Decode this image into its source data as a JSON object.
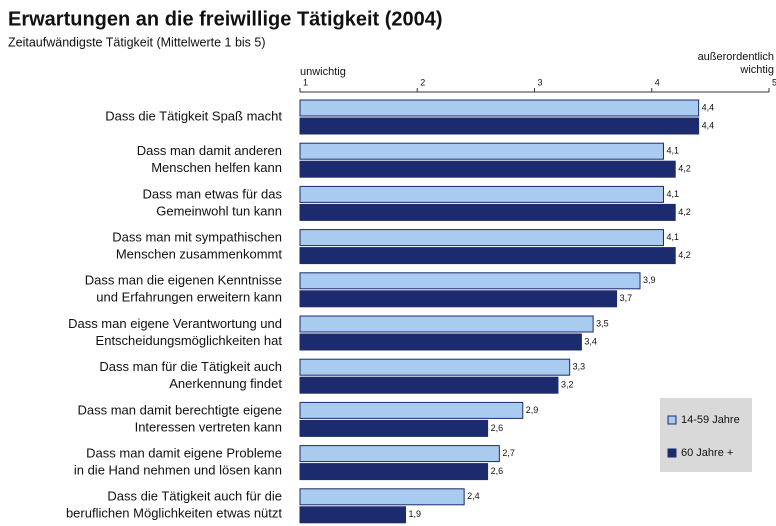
{
  "chart_data": {
    "type": "hbar",
    "title": "Erwartungen an die freiwillige Tätigkeit (2004)",
    "subtitle": "Zeitaufwändigste Tätigkeit (Mittelwerte 1 bis 5)",
    "axis_low_label": "unwichtig",
    "axis_high_label": [
      "außerordentlich",
      "wichtig"
    ],
    "categories": [
      [
        "Dass die Tätigkeit Spaß macht"
      ],
      [
        "Dass man damit anderen",
        "Menschen helfen kann"
      ],
      [
        "Dass man etwas für das",
        "Gemeinwohl tun kann"
      ],
      [
        "Dass  man mit sympathischen",
        "Menschen zusammenkommt"
      ],
      [
        "Dass man die eigenen Kenntnisse",
        "und Erfahrungen erweitern kann"
      ],
      [
        "Dass man eigene Verantwortung und",
        "Entscheidungsmöglichkeiten hat"
      ],
      [
        "Dass man für die Tätigkeit auch",
        "Anerkennung findet"
      ],
      [
        "Dass man damit berechtigte eigene",
        "Interessen vertreten kann"
      ],
      [
        "Dass man damit eigene Probleme",
        "in die Hand nehmen und lösen kann"
      ],
      [
        "Dass die Tätigkeit auch für die",
        "beruflichen Möglichkeiten etwas nützt"
      ]
    ],
    "series": [
      {
        "name": "14-59 Jahre",
        "color": "#a9cbef",
        "values": [
          4.4,
          4.1,
          4.1,
          4.1,
          3.9,
          3.5,
          3.3,
          2.9,
          2.7,
          2.4
        ],
        "value_labels": [
          "4,4",
          "4,1",
          "4,1",
          "4,1",
          "3,9",
          "3,5",
          "3,3",
          "2,9",
          "2,7",
          "2,4"
        ]
      },
      {
        "name": "60 Jahre +",
        "color": "#1c2a6e",
        "values": [
          4.4,
          4.2,
          4.2,
          4.2,
          3.7,
          3.4,
          3.2,
          2.6,
          2.6,
          1.9
        ],
        "value_labels": [
          "4,4",
          "4,2",
          "4,2",
          "4,2",
          "3,7",
          "3,4",
          "3,2",
          "2,6",
          "2,6",
          "1,9"
        ]
      }
    ],
    "xlim": [
      1,
      5
    ],
    "xticks": [
      1,
      2,
      3,
      4,
      5
    ],
    "legend": "lower right"
  }
}
